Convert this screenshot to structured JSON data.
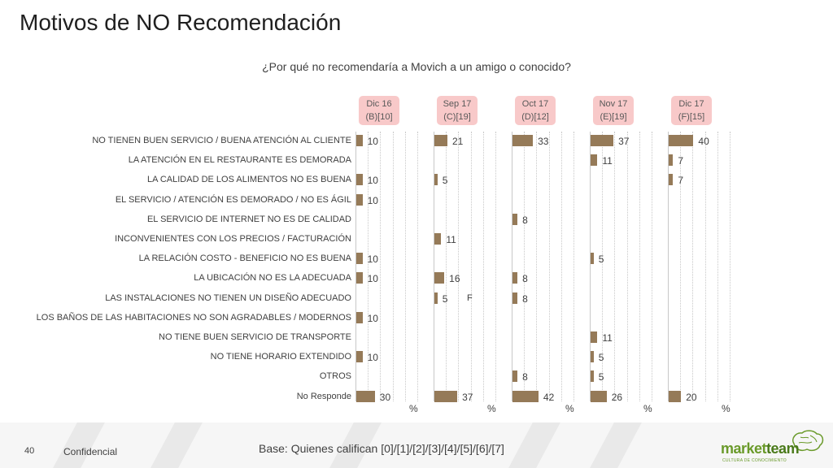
{
  "page": {
    "title": "Motivos de NO Recomendación",
    "subtitle": "¿Por qué no recomendaría a Movich a un amigo o conocido?",
    "page_number": "40",
    "confidential": "Confidencial",
    "base_note": "Base: Quienes califican [0]/[1]/[2]/[3]/[4]/[5]/[6]/[7]",
    "logo_text_market": "market",
    "logo_text_team": "team",
    "logo_subtext": "CULTURA DE CONOCIMIENTO",
    "note_f": "F",
    "percent_symbol": "%"
  },
  "colors": {
    "bar": "#957a58",
    "badge": "#f8c9c9",
    "logo": "#6a9a2a"
  },
  "icons": [
    "brain-logo-icon"
  ],
  "chart_data": {
    "type": "bar",
    "orientation": "horizontal",
    "categories": [
      "NO TIENEN BUEN SERVICIO / BUENA ATENCIÓN AL CLIENTE",
      "LA ATENCIÓN EN EL RESTAURANTE ES DEMORADA",
      "LA CALIDAD DE LOS ALIMENTOS NO ES BUENA",
      "EL SERVICIO / ATENCIÓN ES DEMORADO / NO ES ÁGIL",
      "EL SERVICIO DE INTERNET NO ES DE CALIDAD",
      "INCONVENIENTES CON LOS PRECIOS / FACTURACIÓN",
      "LA RELACIÓN COSTO - BENEFICIO NO ES BUENA",
      "LA UBICACIÓN NO ES LA ADECUADA",
      "LAS INSTALACIONES NO TIENEN UN DISEÑO ADECUADO",
      "LOS BAÑOS DE LAS HABITACIONES NO SON AGRADABLES / MODERNOS",
      "NO TIENE BUEN SERVICIO DE TRANSPORTE",
      "NO TIENE HORARIO EXTENDIDO",
      "OTROS",
      "No Responde"
    ],
    "series": [
      {
        "name": "Dic 16",
        "base": "(B)[10]",
        "values": [
          10,
          null,
          10,
          10,
          null,
          null,
          10,
          10,
          null,
          10,
          null,
          10,
          null,
          30
        ]
      },
      {
        "name": "Sep 17",
        "base": "(C)[19]",
        "values": [
          21,
          null,
          5,
          null,
          null,
          11,
          null,
          16,
          5,
          null,
          null,
          null,
          null,
          37
        ]
      },
      {
        "name": "Oct 17",
        "base": "(D)[12]",
        "values": [
          33,
          null,
          null,
          null,
          8,
          null,
          null,
          8,
          8,
          null,
          null,
          null,
          8,
          42
        ]
      },
      {
        "name": "Nov 17",
        "base": "(E)[19]",
        "values": [
          37,
          11,
          null,
          null,
          null,
          null,
          5,
          null,
          null,
          null,
          11,
          5,
          5,
          26
        ]
      },
      {
        "name": "Dic 17",
        "base": "(F)[15]",
        "values": [
          40,
          7,
          7,
          null,
          null,
          null,
          null,
          null,
          null,
          null,
          null,
          null,
          null,
          20
        ]
      }
    ],
    "xlabel": "%",
    "xlim": [
      0,
      100
    ],
    "grid": true
  }
}
